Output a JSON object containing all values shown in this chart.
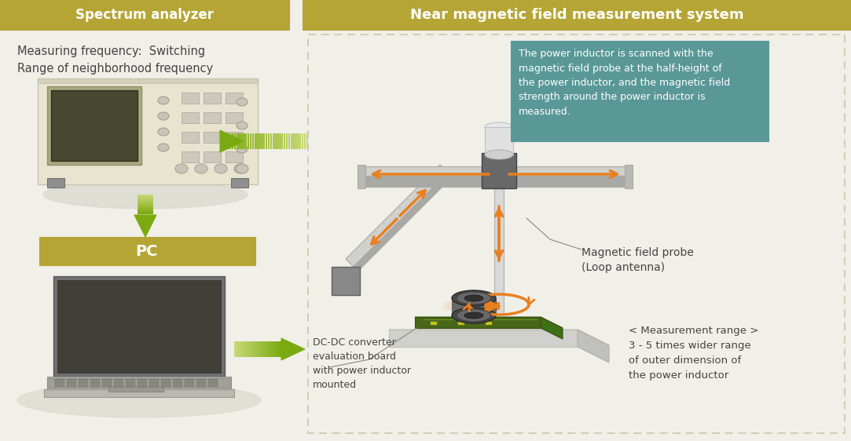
{
  "bg_color": "#f0efe8",
  "header_color": "#b5a535",
  "header_text_color": "#ffffff",
  "left_title": "Spectrum analyzer",
  "right_title": "Near magnetic field measurement system",
  "text_color": "#444444",
  "text_meas_freq": "Measuring frequency:  Switching\nRange of neighborhood frequency",
  "text_pc": "PC",
  "text_dc_dc": "DC-DC converter\nevaluation board\nwith power inductor\nmounted",
  "text_probe": "Magnetic field probe\n(Loop antenna)",
  "text_meas_range": "< Measurement range >\n3 - 5 times wider range\nof outer dimension of\nthe power inductor",
  "text_scan_info": "The power inductor is scanned with the\nmagnetic field probe at the half-height of\nthe power inductor, and the magnetic field\nstrength around the power inductor is\nmeasured.",
  "green_dark": "#7aaa10",
  "green_light": "#c8d878",
  "orange": "#e88020",
  "teal_box": "#5a9898",
  "teal_text": "#ffffff",
  "dashed_color": "#c8c8a8",
  "pc_box_color": "#b5a535",
  "analyzer_body": "#e8e4d0",
  "analyzer_screen_bg": "#a8aa80",
  "analyzer_screen": "#484830",
  "analyzer_btn": "#d8d4c8",
  "laptop_screen_frame": "#707070",
  "laptop_screen": "#404038",
  "laptop_base": "#909090",
  "laptop_base_dark": "#808080",
  "shadow_color": "#d8d8cc",
  "rail_color": "#d0d0cc",
  "rail_dark": "#a8a8a4",
  "mount_color": "#686868",
  "probe_shaft": "#d8d8d8",
  "probe_tip_top": "#d0d0d0",
  "probe_connector": "#585858",
  "platform_top": "#e8e8e4",
  "platform_side": "#d0d0cc",
  "pcb_top": "#5a8828",
  "pcb_side": "#486618",
  "inductor_outer": "#484848",
  "inductor_mid": "#686868",
  "inductor_hole": "#303030"
}
